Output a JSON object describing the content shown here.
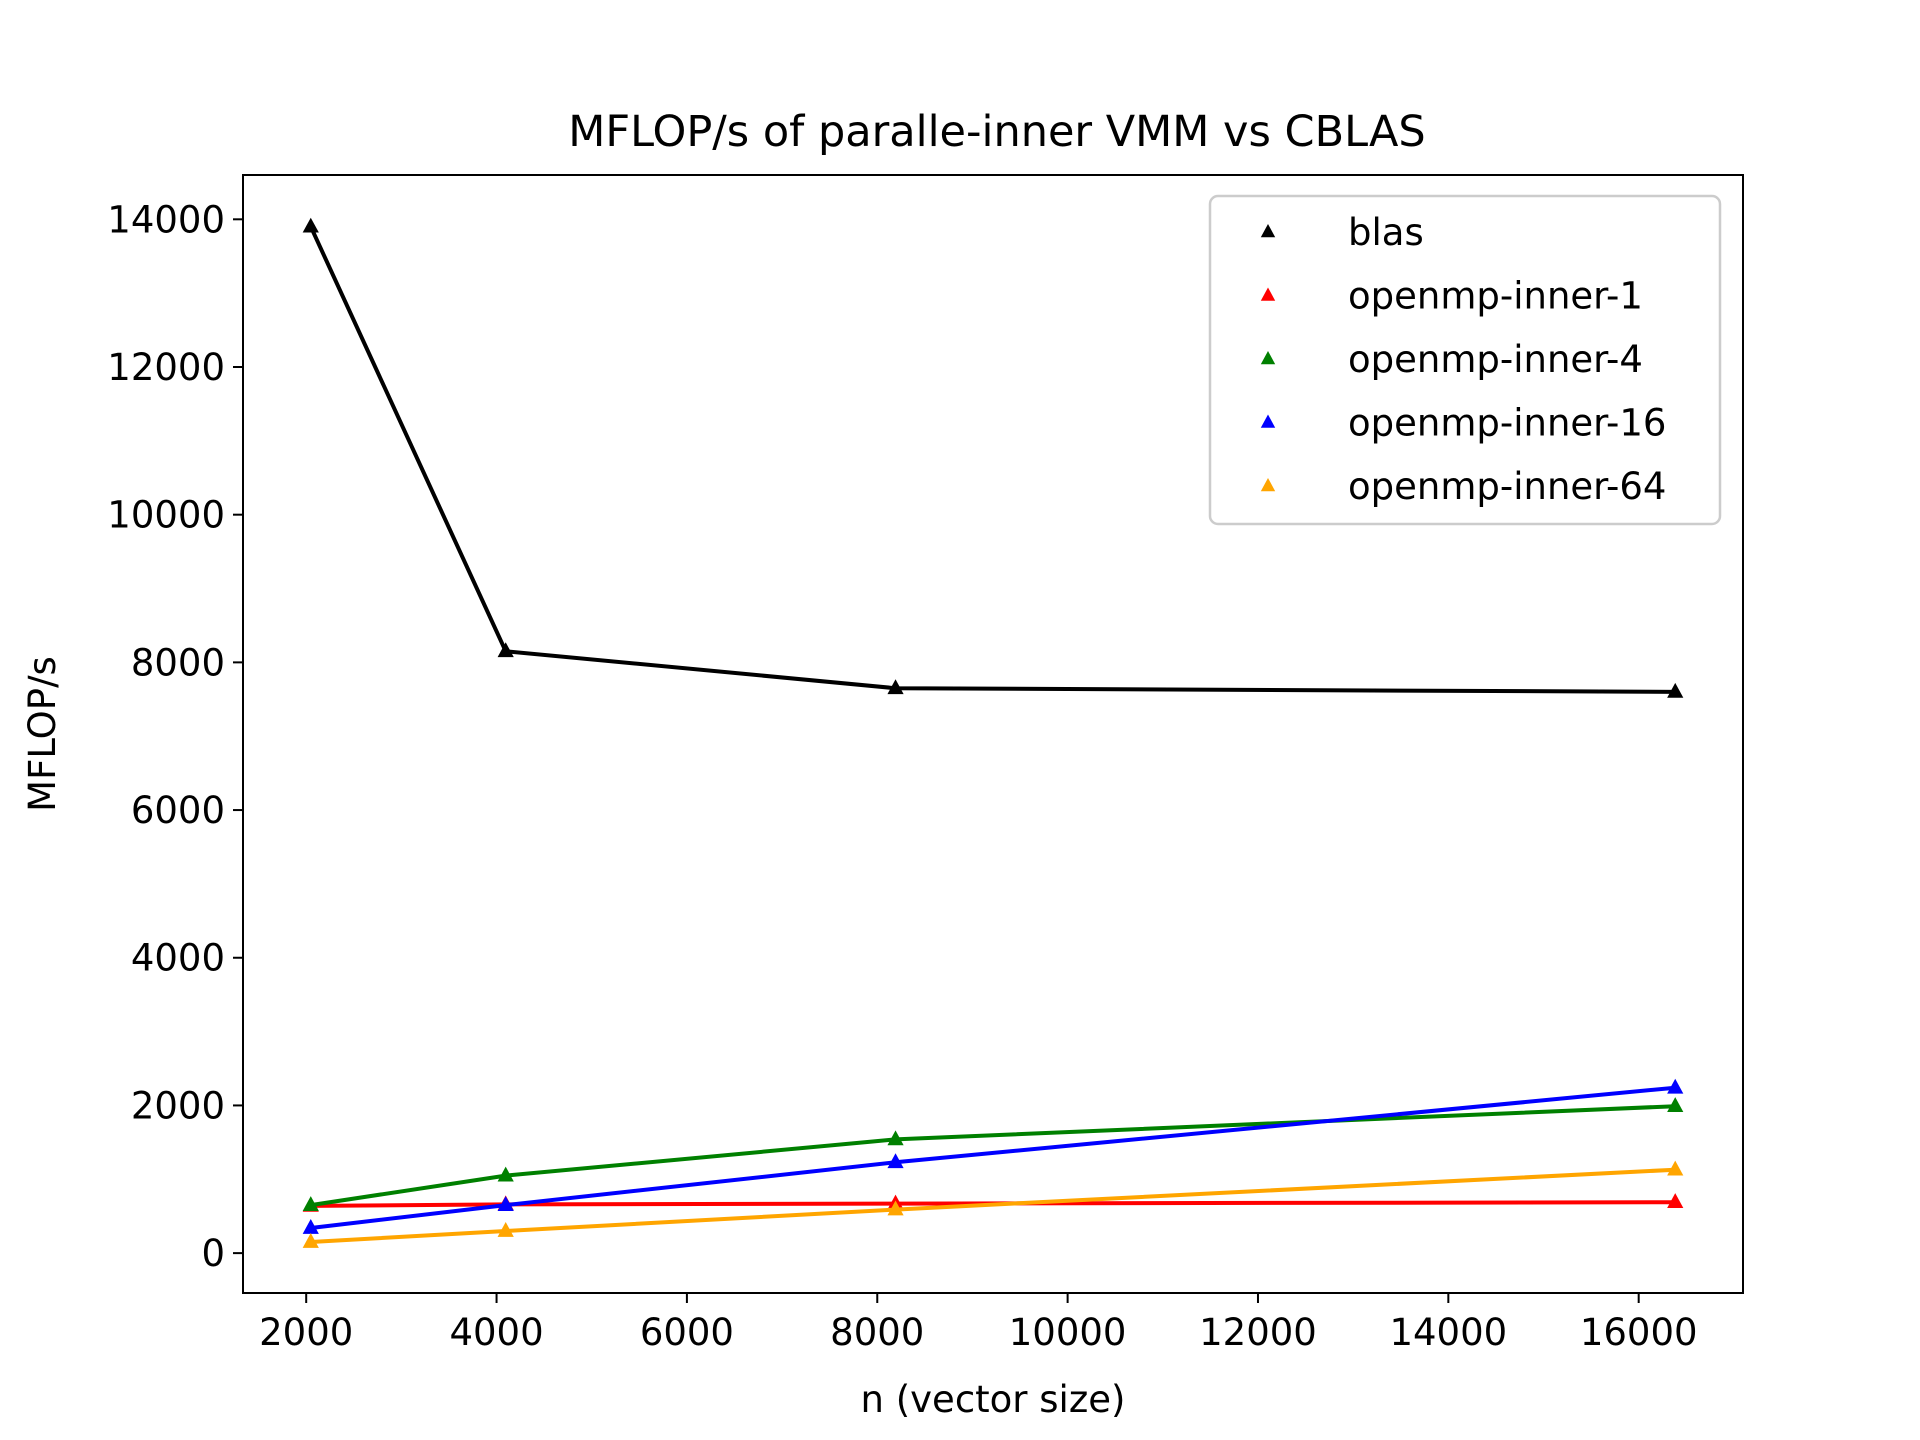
{
  "chart_data": {
    "type": "line",
    "title": "MFLOP/s of paralle-inner VMM vs CBLAS",
    "xlabel": "n (vector size)",
    "ylabel": "MFLOP/s",
    "x": [
      2048,
      4096,
      8192,
      16384
    ],
    "xlim": [
      1336,
      17096
    ],
    "ylim": [
      -540,
      14600
    ],
    "xticks": [
      2000,
      4000,
      6000,
      8000,
      10000,
      12000,
      14000,
      16000
    ],
    "yticks": [
      0,
      2000,
      4000,
      6000,
      8000,
      10000,
      12000,
      14000
    ],
    "grid": false,
    "legend_position": "top-right",
    "marker": "triangle-up",
    "series": [
      {
        "name": "blas",
        "color": "#000000",
        "values": [
          13900,
          8150,
          7650,
          7600
        ]
      },
      {
        "name": "openmp-inner-1",
        "color": "#ff0000",
        "values": [
          640,
          660,
          670,
          690
        ]
      },
      {
        "name": "openmp-inner-4",
        "color": "#008000",
        "values": [
          650,
          1050,
          1540,
          1990
        ]
      },
      {
        "name": "openmp-inner-16",
        "color": "#0000ff",
        "values": [
          340,
          650,
          1230,
          2240
        ]
      },
      {
        "name": "openmp-inner-64",
        "color": "#ffa500",
        "values": [
          150,
          300,
          590,
          1130
        ]
      }
    ]
  }
}
